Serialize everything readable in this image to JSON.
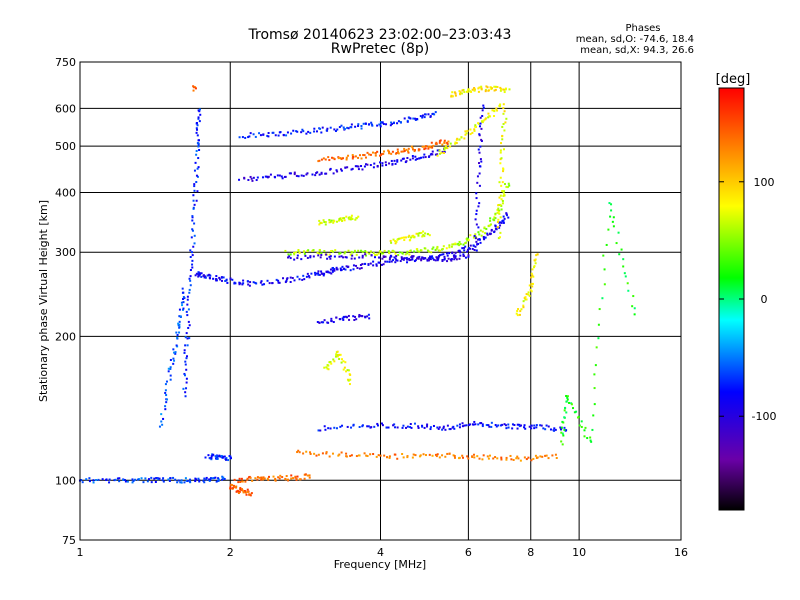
{
  "chart_data": {
    "type": "scatter",
    "title": "Tromsø 20140623 23:02:00–23:03:43",
    "subtitle": "RwPretec (8p)",
    "xlabel": "Frequency [MHz]",
    "ylabel": "Stationary phase Virtual Height [km]",
    "x_scale": "log",
    "y_scale": "log",
    "xlim": [
      1,
      16
    ],
    "ylim": [
      75,
      750
    ],
    "x_ticks": [
      1,
      2,
      4,
      6,
      8,
      10,
      16
    ],
    "x_tick_labels": [
      "1",
      "2",
      "4",
      "6",
      "8",
      "10",
      "16"
    ],
    "y_ticks": [
      75,
      100,
      200,
      300,
      400,
      500,
      600,
      750
    ],
    "y_tick_labels": [
      "75",
      "100",
      "200",
      "300",
      "400",
      "500",
      "600",
      "750"
    ],
    "grid": true,
    "colorbar": {
      "label": "[deg]",
      "range": [
        -180,
        180
      ],
      "ticks": [
        100,
        0,
        -100
      ],
      "tick_labels": [
        "100",
        "0",
        "-100"
      ]
    },
    "stats": {
      "heading": "Phases",
      "line1": "mean, sd,O: -74.6, 18.4",
      "line2": "mean, sd,X:  94.3, 26.6"
    },
    "traces": [
      {
        "x": [
          1.0,
          1.2,
          1.4,
          1.6,
          1.8,
          1.95
        ],
        "y": [
          100,
          100,
          100,
          100,
          100,
          101
        ],
        "phase": -65
      },
      {
        "x": [
          1.62,
          1.64,
          1.67,
          1.7,
          1.72,
          1.73
        ],
        "y": [
          150,
          200,
          280,
          380,
          500,
          600
        ],
        "phase": -70
      },
      {
        "x": [
          1.45,
          1.52,
          1.58,
          1.62
        ],
        "y": [
          130,
          170,
          210,
          250
        ],
        "phase": -60
      },
      {
        "x": [
          1.7,
          1.8,
          1.95,
          2.2,
          2.6,
          3.0,
          3.4
        ],
        "y": [
          270,
          268,
          262,
          258,
          262,
          270,
          278
        ],
        "phase": -85
      },
      {
        "x": [
          3.0,
          3.5,
          4.0,
          4.6,
          5.2,
          5.8,
          6.3,
          6.8,
          7.2
        ],
        "y": [
          272,
          278,
          285,
          290,
          292,
          300,
          315,
          335,
          360
        ],
        "phase": -90
      },
      {
        "x": [
          2.6,
          3.0,
          3.5,
          4.0,
          4.6,
          5.2,
          5.8,
          6.4,
          6.9,
          7.2
        ],
        "y": [
          300,
          300,
          299,
          298,
          300,
          304,
          314,
          330,
          365,
          420
        ],
        "phase": 60
      },
      {
        "x": [
          2.6,
          3.2,
          4.0,
          4.7,
          5.4,
          6.0
        ],
        "y": [
          292,
          294,
          294,
          292,
          290,
          295
        ],
        "phase": -100
      },
      {
        "x": [
          2.1,
          2.5,
          3.0,
          3.6,
          4.2,
          4.8,
          5.4
        ],
        "y": [
          425,
          432,
          440,
          450,
          462,
          475,
          490
        ],
        "phase": -95
      },
      {
        "x": [
          3.0,
          3.5,
          4.0,
          4.5,
          5.0,
          5.5
        ],
        "y": [
          468,
          474,
          482,
          490,
          500,
          512
        ],
        "phase": 140
      },
      {
        "x": [
          2.1,
          2.5,
          3.0,
          3.5,
          4.0,
          4.6,
          5.2
        ],
        "y": [
          525,
          530,
          540,
          548,
          556,
          568,
          585
        ],
        "phase": -75
      },
      {
        "x": [
          5.2,
          5.8,
          6.4,
          7.0
        ],
        "y": [
          480,
          520,
          560,
          610
        ],
        "phase": 75
      },
      {
        "x": [
          6.2,
          6.3,
          6.4
        ],
        "y": [
          300,
          450,
          610
        ],
        "phase": -95
      },
      {
        "x": [
          6.9,
          7.0,
          7.1
        ],
        "y": [
          320,
          450,
          600
        ],
        "phase": 80
      },
      {
        "x": [
          3.0,
          3.8,
          4.6,
          5.4,
          6.2,
          7.2,
          8.2,
          9.5
        ],
        "y": [
          128,
          130,
          130,
          129,
          131,
          130,
          129,
          128
        ],
        "phase": -80
      },
      {
        "x": [
          2.7,
          3.4,
          4.2,
          5.2,
          6.2,
          7.5,
          9.0
        ],
        "y": [
          114,
          113,
          112,
          113,
          112,
          111,
          112
        ],
        "phase": 130
      },
      {
        "x": [
          1.8,
          1.9,
          2.0
        ],
        "y": [
          112,
          112,
          111
        ],
        "phase": -70
      },
      {
        "x": [
          2.05,
          2.3,
          2.6,
          2.9
        ],
        "y": [
          100,
          101,
          101,
          102
        ],
        "phase": 140
      },
      {
        "x": [
          2.0,
          2.1,
          2.2
        ],
        "y": [
          97,
          95,
          94
        ],
        "phase": 145
      },
      {
        "x": [
          3.1,
          3.3,
          3.5
        ],
        "y": [
          170,
          185,
          160
        ],
        "phase": 75
      },
      {
        "x": [
          3.0,
          3.4,
          3.8
        ],
        "y": [
          215,
          218,
          220
        ],
        "phase": -90
      },
      {
        "x": [
          3.0,
          3.3,
          3.6
        ],
        "y": [
          345,
          350,
          355
        ],
        "phase": 70
      },
      {
        "x": [
          4.2,
          4.6,
          5.0
        ],
        "y": [
          315,
          322,
          330
        ],
        "phase": 75
      },
      {
        "x": [
          5.5,
          6.0,
          6.6,
          7.2
        ],
        "y": [
          640,
          655,
          660,
          655
        ],
        "phase": 85
      },
      {
        "x": [
          7.5,
          8.0,
          8.2
        ],
        "y": [
          220,
          250,
          300
        ],
        "phase": 80
      },
      {
        "x": [
          9.2,
          9.5,
          10.5,
          11.5,
          13.0
        ],
        "y": [
          120,
          150,
          120,
          380,
          220
        ],
        "phase": 20
      },
      {
        "x": [
          1.7
        ],
        "y": [
          660
        ],
        "phase": 140
      }
    ]
  }
}
